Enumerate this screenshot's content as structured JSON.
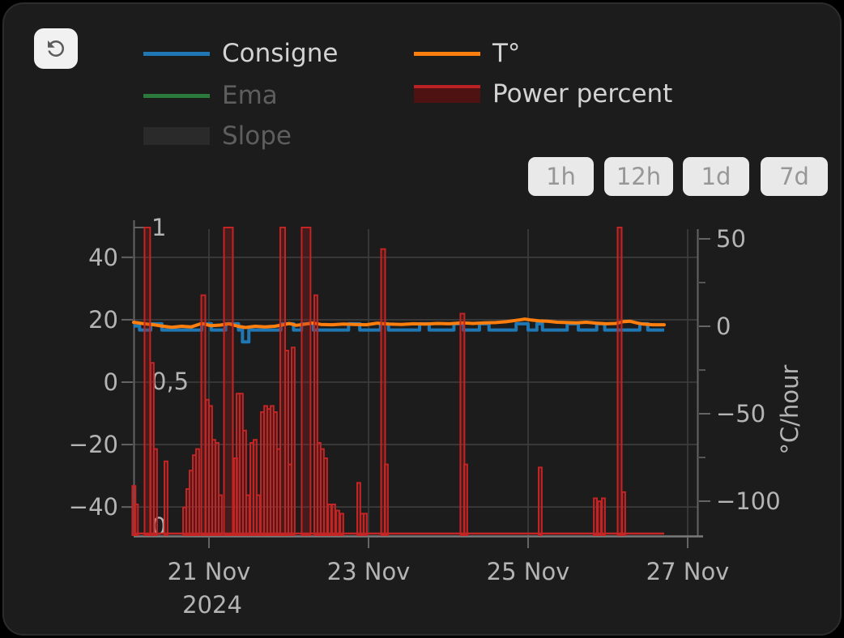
{
  "toolbar": {
    "refresh_tooltip": "refresh",
    "ranges": [
      "1h",
      "12h",
      "1d",
      "7d"
    ]
  },
  "legend": {
    "items": [
      {
        "label": "Consigne",
        "type": "line",
        "series_color": "#1f77b4",
        "enabled": true
      },
      {
        "label": "Ema",
        "type": "line",
        "series_color": "#2b7a3c",
        "enabled": false
      },
      {
        "label": "Slope",
        "type": "fill",
        "series_color": "#2a2a2a",
        "enabled": false
      },
      {
        "label": "T°",
        "type": "line",
        "series_color": "#ff7f0e",
        "enabled": true
      },
      {
        "label": "Power percent",
        "type": "bar",
        "series_color": "#4f1212",
        "border_color": "#bb2124",
        "enabled": true
      }
    ]
  },
  "chart_data": {
    "type": "mixed line+bar",
    "grid": true,
    "x_axis": {
      "unit": "days (Nov 2024)",
      "tick_days": [
        1,
        3,
        5,
        7
      ],
      "tick_labels": [
        "21 Nov",
        "23 Nov",
        "25 Nov",
        "27 Nov"
      ],
      "sub_label": "2024",
      "day_range": [
        0.056,
        7.132
      ],
      "series_end_day": 6.706
    },
    "temp_axis": {
      "side": "left",
      "ticks": [
        [
          40,
          "40"
        ],
        [
          20,
          "20"
        ],
        [
          0,
          "0"
        ],
        [
          -20,
          "−20"
        ],
        [
          -40,
          "−40"
        ]
      ],
      "range": [
        -49,
        49
      ]
    },
    "power_axis": {
      "side": "inner-left",
      "ticks": [
        [
          1,
          "1"
        ],
        [
          0.5,
          "0,5"
        ],
        [
          0,
          "0"
        ]
      ],
      "range": [
        0,
        1
      ]
    },
    "rate_axis": {
      "side": "right",
      "label": "°C/hour",
      "ticks": [
        [
          50,
          "50"
        ],
        [
          0,
          "0"
        ],
        [
          -50,
          "−50"
        ],
        [
          -100,
          "−100"
        ]
      ],
      "minor_ticks": [
        25,
        -25,
        -75
      ],
      "range": [
        -120,
        55
      ]
    },
    "colors": {
      "grid": "#3e3e3e",
      "axis": "#646464",
      "axis_bottom": "#7a7a7a",
      "tick_text": "#b4b4b4",
      "consigne": "#1f77b4",
      "temperature": "#ff7f0e",
      "power_stroke": "#c32424",
      "power_fill": "rgba(170,28,28,0.30)"
    },
    "series": [
      {
        "name": "Consigne",
        "axis": "temp",
        "style": "step",
        "steps": [
          [
            0.056,
            0.13,
            18.0
          ],
          [
            0.13,
            0.27,
            16.7
          ],
          [
            0.27,
            0.41,
            18.7
          ],
          [
            0.41,
            0.91,
            16.7
          ],
          [
            0.91,
            1.03,
            18.7
          ],
          [
            1.03,
            1.21,
            16.7
          ],
          [
            1.21,
            1.37,
            18.7
          ],
          [
            1.37,
            1.42,
            16.7
          ],
          [
            1.42,
            1.5,
            12.9
          ],
          [
            1.5,
            1.9,
            16.7
          ],
          [
            1.9,
            2.06,
            18.7
          ],
          [
            2.06,
            2.16,
            16.7
          ],
          [
            2.16,
            2.31,
            18.7
          ],
          [
            2.31,
            2.75,
            16.7
          ],
          [
            2.75,
            2.89,
            18.7
          ],
          [
            2.89,
            3.15,
            16.7
          ],
          [
            3.15,
            3.25,
            18.7
          ],
          [
            3.25,
            3.64,
            16.7
          ],
          [
            3.64,
            3.76,
            18.7
          ],
          [
            3.76,
            4.07,
            16.7
          ],
          [
            4.07,
            4.19,
            18.7
          ],
          [
            4.19,
            4.39,
            16.7
          ],
          [
            4.39,
            4.51,
            18.7
          ],
          [
            4.51,
            4.85,
            16.7
          ],
          [
            4.85,
            5.0,
            18.7
          ],
          [
            5.0,
            5.11,
            16.7
          ],
          [
            5.11,
            5.18,
            18.7
          ],
          [
            5.18,
            5.49,
            16.7
          ],
          [
            5.49,
            5.63,
            18.7
          ],
          [
            5.63,
            5.86,
            16.7
          ],
          [
            5.86,
            5.96,
            18.7
          ],
          [
            5.96,
            6.4,
            16.7
          ],
          [
            6.4,
            6.5,
            18.7
          ],
          [
            6.5,
            6.706,
            16.7
          ]
        ]
      },
      {
        "name": "T°",
        "axis": "temp",
        "style": "line",
        "points": [
          [
            0.056,
            19.2
          ],
          [
            0.188,
            18.7
          ],
          [
            0.31,
            18.4
          ],
          [
            0.431,
            17.9
          ],
          [
            0.533,
            17.6
          ],
          [
            0.655,
            17.9
          ],
          [
            0.777,
            17.7
          ],
          [
            0.909,
            18.8
          ],
          [
            1.02,
            18.1
          ],
          [
            1.142,
            18.3
          ],
          [
            1.254,
            18.7
          ],
          [
            1.365,
            17.9
          ],
          [
            1.457,
            17.5
          ],
          [
            1.579,
            17.9
          ],
          [
            1.701,
            17.7
          ],
          [
            1.822,
            17.9
          ],
          [
            1.934,
            18.4
          ],
          [
            2.005,
            18.8
          ],
          [
            2.096,
            18.2
          ],
          [
            2.208,
            18.6
          ],
          [
            2.299,
            19.0
          ],
          [
            2.401,
            18.5
          ],
          [
            2.543,
            18.4
          ],
          [
            2.685,
            18.6
          ],
          [
            2.827,
            18.5
          ],
          [
            2.97,
            18.4
          ],
          [
            3.112,
            18.9
          ],
          [
            3.254,
            18.6
          ],
          [
            3.406,
            18.5
          ],
          [
            3.558,
            18.7
          ],
          [
            3.711,
            18.6
          ],
          [
            3.863,
            18.8
          ],
          [
            4.015,
            18.7
          ],
          [
            4.167,
            19.0
          ],
          [
            4.31,
            18.8
          ],
          [
            4.452,
            19.0
          ],
          [
            4.594,
            19.1
          ],
          [
            4.736,
            19.4
          ],
          [
            4.878,
            19.9
          ],
          [
            4.959,
            20.2
          ],
          [
            5.041,
            19.9
          ],
          [
            5.142,
            19.6
          ],
          [
            5.244,
            19.5
          ],
          [
            5.365,
            19.2
          ],
          [
            5.487,
            19.1
          ],
          [
            5.609,
            19.0
          ],
          [
            5.731,
            19.2
          ],
          [
            5.853,
            18.9
          ],
          [
            5.975,
            18.7
          ],
          [
            6.097,
            18.8
          ],
          [
            6.198,
            19.4
          ],
          [
            6.279,
            19.5
          ],
          [
            6.36,
            19.0
          ],
          [
            6.442,
            18.6
          ],
          [
            6.563,
            18.4
          ],
          [
            6.706,
            18.4
          ]
        ]
      },
      {
        "name": "Power percent",
        "axis": "power",
        "style": "bar",
        "default_bar_width_days": 0.04,
        "bars": [
          [
            0.06,
            0.16
          ],
          [
            0.09,
            0.1
          ],
          [
            0.228,
            1.0,
            0.071
          ],
          [
            0.289,
            0.56
          ],
          [
            0.33,
            0.28
          ],
          [
            0.462,
            0.24
          ],
          [
            0.695,
            0.09
          ],
          [
            0.736,
            0.15
          ],
          [
            0.777,
            0.21
          ],
          [
            0.817,
            0.26
          ],
          [
            0.858,
            0.28
          ],
          [
            0.929,
            0.78,
            0.051
          ],
          [
            0.98,
            0.44
          ],
          [
            1.02,
            0.42
          ],
          [
            1.061,
            0.31
          ],
          [
            1.102,
            0.3
          ],
          [
            1.142,
            0.13
          ],
          [
            1.244,
            1.0,
            0.112
          ],
          [
            1.335,
            0.25
          ],
          [
            1.365,
            0.46
          ],
          [
            1.406,
            0.46
          ],
          [
            1.447,
            0.34
          ],
          [
            1.487,
            0.13
          ],
          [
            1.538,
            0.3
          ],
          [
            1.579,
            0.31
          ],
          [
            1.619,
            0.13
          ],
          [
            1.67,
            0.4
          ],
          [
            1.711,
            0.42
          ],
          [
            1.751,
            0.41
          ],
          [
            1.792,
            0.42
          ],
          [
            1.832,
            0.4
          ],
          [
            1.873,
            0.28
          ],
          [
            1.924,
            1.0,
            0.061
          ],
          [
            1.975,
            0.6
          ],
          [
            2.015,
            0.23
          ],
          [
            2.056,
            0.61
          ],
          [
            2.218,
            1.0,
            0.112
          ],
          [
            2.34,
            0.78
          ],
          [
            2.381,
            0.3
          ],
          [
            2.421,
            0.28
          ],
          [
            2.462,
            0.25
          ],
          [
            2.513,
            0.1
          ],
          [
            2.563,
            0.1
          ],
          [
            2.614,
            0.08
          ],
          [
            2.665,
            0.07
          ],
          [
            2.878,
            0.17
          ],
          [
            2.919,
            0.07
          ],
          [
            2.959,
            0.07
          ],
          [
            3.183,
            0.93,
            0.051
          ],
          [
            3.223,
            0.23
          ],
          [
            4.177,
            0.72,
            0.051
          ],
          [
            4.218,
            0.23
          ],
          [
            5.152,
            0.22
          ],
          [
            5.843,
            0.12
          ],
          [
            5.893,
            0.11
          ],
          [
            5.944,
            0.12
          ],
          [
            6.147,
            1.0,
            0.051
          ],
          [
            6.198,
            0.14
          ]
        ]
      }
    ]
  }
}
